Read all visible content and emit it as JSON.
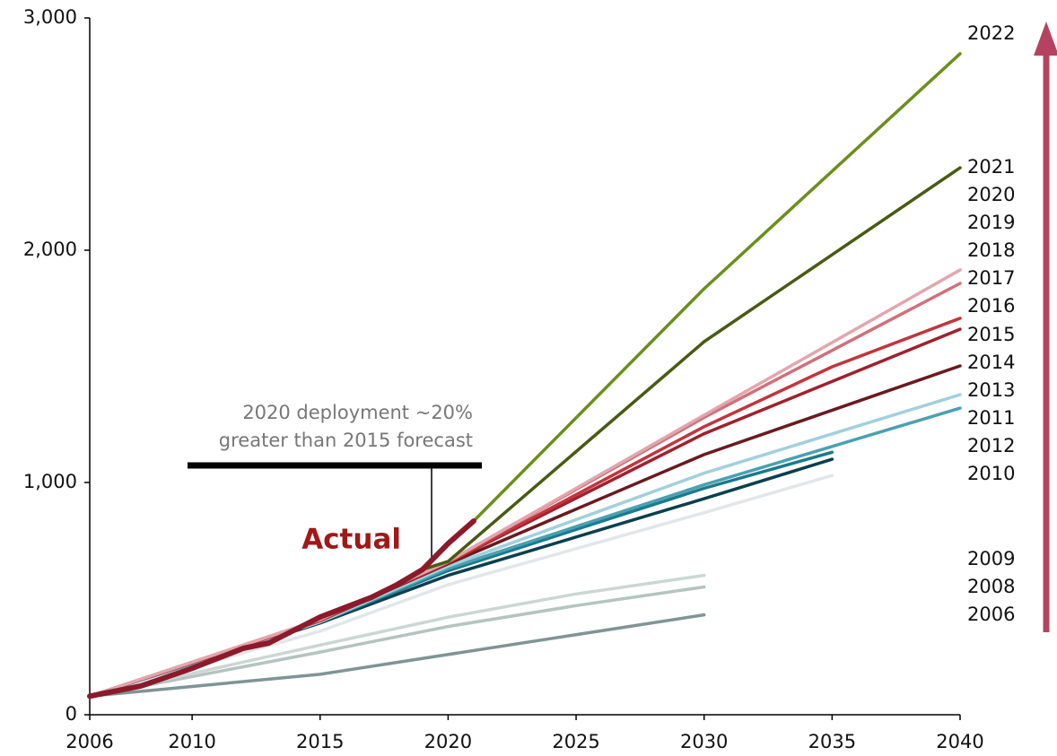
{
  "chart_data": {
    "type": "line",
    "xlim": [
      2006,
      2040
    ],
    "ylim": [
      0,
      3000
    ],
    "xticks": [
      2006,
      2010,
      2015,
      2020,
      2025,
      2030,
      2035,
      2040
    ],
    "yticks": [
      0,
      {
        "value": 1000,
        "label": "1,000"
      },
      {
        "value": 2000,
        "label": "2,000"
      },
      {
        "value": 3000,
        "label": "3,000"
      }
    ],
    "annotations": [
      "2020 deployment ~20%",
      "greater than 2015 forecast",
      "Actual"
    ],
    "year_labels": [
      "2022",
      "2021",
      "2020",
      "2019",
      "2018",
      "2017",
      "2016",
      "2015",
      "2014",
      "2013",
      "2011",
      "2012",
      "2010",
      "2009",
      "2008",
      "2006"
    ],
    "series": [
      {
        "color": "#809494",
        "x": [
          2006,
          2015,
          2030
        ],
        "values": [
          80,
          174,
          430
        ]
      },
      {
        "color": "#b4c4c0",
        "x": [
          2006,
          2015,
          2020,
          2025,
          2030
        ],
        "values": [
          80,
          270,
          380,
          470,
          550
        ]
      },
      {
        "color": "#ccd6d3",
        "x": [
          2006,
          2015,
          2020,
          2025,
          2030
        ],
        "values": [
          80,
          300,
          420,
          520,
          600
        ]
      },
      {
        "color": "#e2e6e8",
        "x": [
          2006,
          2015,
          2020,
          2030,
          2035
        ],
        "values": [
          80,
          360,
          560,
          870,
          1030
        ]
      },
      {
        "color": "#0c3f4e",
        "x": [
          2006,
          2015,
          2020,
          2030,
          2035
        ],
        "values": [
          80,
          395,
          600,
          930,
          1100
        ]
      },
      {
        "color": "#1a7a8c",
        "x": [
          2006,
          2015,
          2020,
          2030,
          2035
        ],
        "values": [
          80,
          400,
          620,
          975,
          1130
        ]
      },
      {
        "color": "#4aa0b2",
        "x": [
          2006,
          2015,
          2020,
          2030,
          2040
        ],
        "values": [
          80,
          400,
          630,
          990,
          1320
        ]
      },
      {
        "color": "#a2d0dc",
        "x": [
          2006,
          2015,
          2020,
          2030,
          2040
        ],
        "values": [
          80,
          400,
          640,
          1040,
          1378
        ]
      },
      {
        "color": "#6a1a20",
        "x": [
          2006,
          2015,
          2020,
          2030,
          2040
        ],
        "values": [
          80,
          405,
          650,
          1120,
          1502
        ]
      },
      {
        "color": "#a0202e",
        "x": [
          2006,
          2015,
          2020,
          2030,
          2040
        ],
        "values": [
          80,
          405,
          655,
          1210,
          1660
        ]
      },
      {
        "color": "#c4343c",
        "x": [
          2006,
          2015,
          2020,
          2030,
          2035,
          2040
        ],
        "values": [
          80,
          405,
          655,
          1240,
          1498,
          1707
        ]
      },
      {
        "color": "#d0707a",
        "x": [
          2006,
          2015,
          2020,
          2030,
          2040
        ],
        "values": [
          80,
          410,
          660,
          1280,
          1857
        ]
      },
      {
        "color": "#e2a6ac",
        "x": [
          2006,
          2015,
          2020,
          2030,
          2040
        ],
        "values": [
          80,
          410,
          660,
          1290,
          1915
        ]
      },
      {
        "color": "#4a5a12",
        "x": [
          2019,
          2020,
          2030,
          2040
        ],
        "values": [
          625,
          660,
          1606,
          2355
        ]
      },
      {
        "color": "#6a8f1a",
        "x": [
          2021,
          2030,
          2040
        ],
        "values": [
          834,
          1834,
          2846
        ]
      },
      {
        "color": "#8b1a2b",
        "x": [
          2006,
          2008,
          2010,
          2012,
          2013,
          2015,
          2017,
          2018,
          2019,
          2020,
          2021
        ],
        "values": [
          80,
          124,
          200,
          286,
          309,
          421,
          505,
          560,
          625,
          737,
          834
        ]
      }
    ]
  }
}
